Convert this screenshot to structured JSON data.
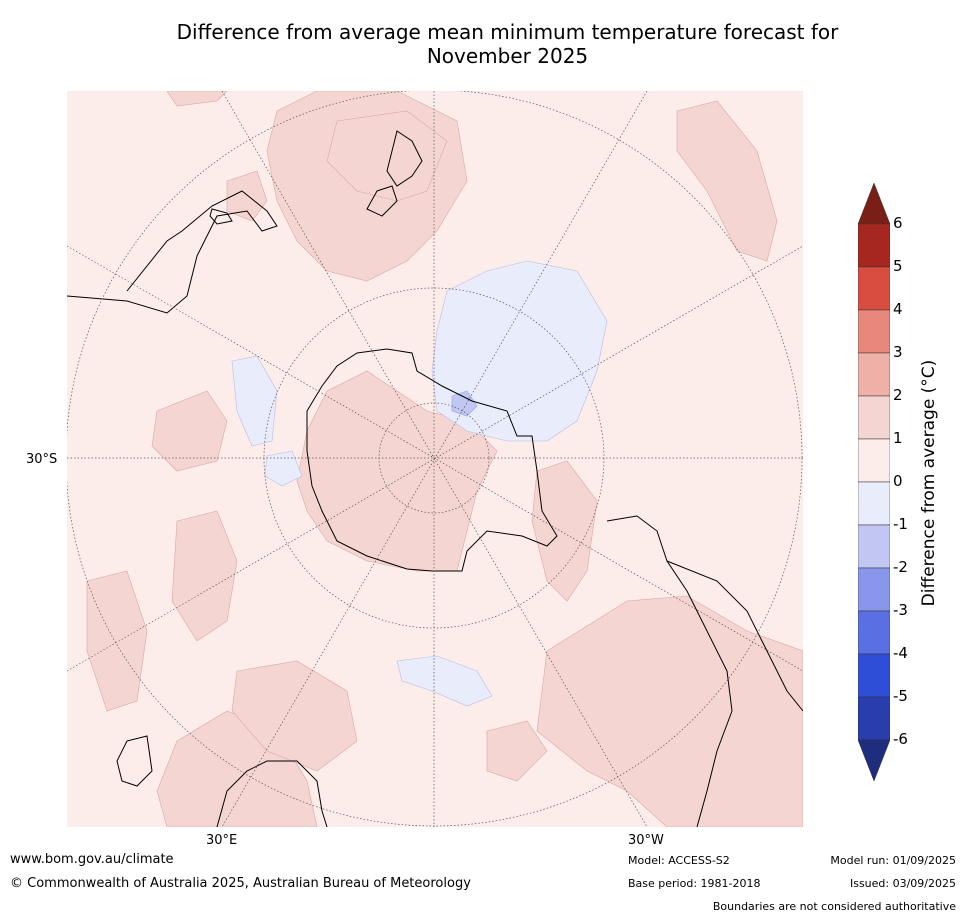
{
  "title": {
    "line1": "Difference from average mean minimum temperature forecast for",
    "line2": "November 2025"
  },
  "map": {
    "projection": "south-polar-stereographic",
    "lat_label": "30°S",
    "lon_labels": {
      "east": "30°E",
      "west": "30°W"
    },
    "regions": [
      {
        "name": "ocean-background",
        "anomaly_range": [
          0,
          1
        ],
        "color": "#fcecea"
      },
      {
        "name": "antarctica",
        "anomaly_range": [
          1,
          2
        ],
        "color": "#f5d5d2"
      },
      {
        "name": "australia-region",
        "anomaly_range": [
          1,
          2
        ],
        "color": "#f5d5d2"
      },
      {
        "name": "new-zealand-region",
        "anomaly_range": [
          1,
          2
        ],
        "color": "#f5d5d2"
      },
      {
        "name": "south-america-region",
        "anomaly_range": [
          1,
          2
        ],
        "color": "#f5d5d2"
      },
      {
        "name": "southern-africa-region",
        "anomaly_range": [
          1,
          2
        ],
        "color": "#f5d5d2"
      },
      {
        "name": "ross-sea-cool-patch",
        "anomaly_range": [
          -1,
          0
        ],
        "color": "#e9ecfa"
      },
      {
        "name": "weddell-cool-patch",
        "anomaly_range": [
          -2,
          -1
        ],
        "color": "#c1c7f2"
      },
      {
        "name": "indian-ocean-cool-patch",
        "anomaly_range": [
          -1,
          0
        ],
        "color": "#e9ecfa"
      }
    ]
  },
  "colorbar": {
    "label": "Difference from average (°C)",
    "ticks": [
      "6",
      "5",
      "4",
      "3",
      "2",
      "1",
      "0",
      "-1",
      "-2",
      "-3",
      "-4",
      "-5",
      "-6"
    ],
    "colors_top_to_bottom": [
      "#a6271f",
      "#d94d41",
      "#e8877b",
      "#efb0a7",
      "#f5d5d2",
      "#fcecea",
      "#e9ecfa",
      "#c1c7f2",
      "#8896eb",
      "#5a6fe2",
      "#2e4ed8",
      "#2a3dae"
    ],
    "extend_top_color": "#7b1f16",
    "extend_bottom_color": "#1f2d7f"
  },
  "footer": {
    "website": "www.bom.gov.au/climate",
    "copyright": "© Commonwealth of Australia 2025, Australian Bureau of Meteorology",
    "model": "Model: ACCESS-S2",
    "base_period": "Base period: 1981-2018",
    "model_run": "Model run: 01/09/2025",
    "issued": "Issued: 03/09/2025",
    "disclaimer": "Boundaries are not considered authoritative"
  }
}
